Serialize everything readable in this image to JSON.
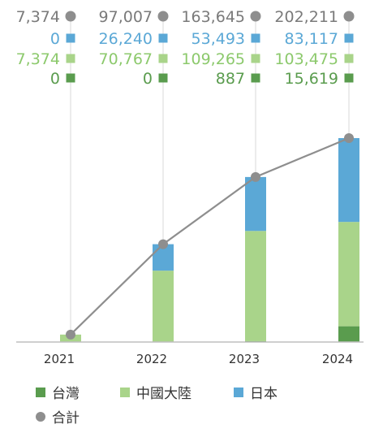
{
  "chart_data": {
    "type": "bar",
    "stacked": true,
    "categories": [
      "2021",
      "2022",
      "2023",
      "2024"
    ],
    "series": [
      {
        "name": "台灣",
        "color": "#5a9c4e",
        "values": [
          0,
          0,
          887,
          15619
        ],
        "labels": [
          "0",
          "0",
          "887",
          "15,619"
        ]
      },
      {
        "name": "中國大陸",
        "color": "#a9d48a",
        "values": [
          7374,
          70767,
          109265,
          103475
        ],
        "labels": [
          "7,374",
          "70,767",
          "109,265",
          "103,475"
        ]
      },
      {
        "name": "日本",
        "color": "#5ba8d6",
        "values": [
          0,
          26240,
          53493,
          83117
        ],
        "labels": [
          "0",
          "26,240",
          "53,493",
          "83,117"
        ]
      }
    ],
    "total": {
      "name": "合計",
      "type": "line",
      "color": "#8e8e8e",
      "values": [
        7374,
        97007,
        163645,
        202211
      ],
      "labels": [
        "7,374",
        "97,007",
        "163,645",
        "202,211"
      ]
    },
    "legend": "bottom",
    "grid": false
  }
}
